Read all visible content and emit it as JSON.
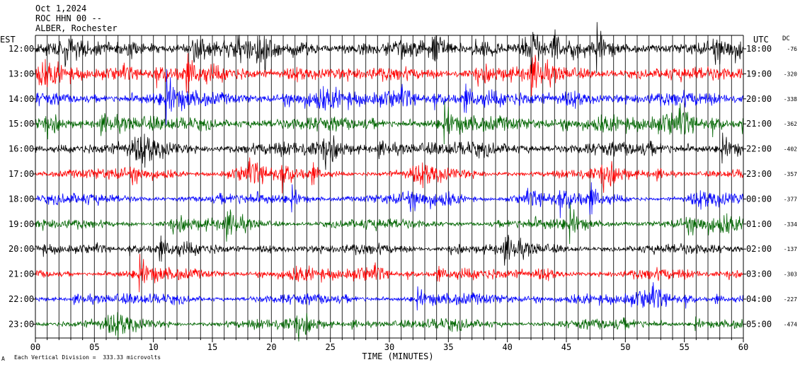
{
  "header": {
    "date": "Oct 1,2024",
    "station": "ROC HHN 00 --",
    "location": "ALBER, Rochester"
  },
  "chart_data": {
    "type": "line",
    "title": "",
    "xlabel": "TIME (MINUTES)",
    "left_axis_label": "EST",
    "right_axis_label": "UTC",
    "dc_label": "DC",
    "xlim": [
      0,
      60
    ],
    "x_ticks": [
      "00",
      "05",
      "10",
      "15",
      "20",
      "25",
      "30",
      "35",
      "40",
      "45",
      "50",
      "55",
      "60"
    ],
    "trace_colors": [
      "#000000",
      "#ff0000",
      "#0000ff",
      "#006600"
    ],
    "grid_vertical_each_minute": true,
    "rows": [
      {
        "est": "12:00",
        "utc": "18:00",
        "dc": "-76"
      },
      {
        "est": "13:00",
        "utc": "19:00",
        "dc": "-320"
      },
      {
        "est": "14:00",
        "utc": "20:00",
        "dc": "-338"
      },
      {
        "est": "15:00",
        "utc": "21:00",
        "dc": "-362"
      },
      {
        "est": "16:00",
        "utc": "22:00",
        "dc": "-402"
      },
      {
        "est": "17:00",
        "utc": "23:00",
        "dc": "-357"
      },
      {
        "est": "18:00",
        "utc": "00:00",
        "dc": "-377"
      },
      {
        "est": "19:00",
        "utc": "01:00",
        "dc": "-334"
      },
      {
        "est": "20:00",
        "utc": "02:00",
        "dc": "-137"
      },
      {
        "est": "21:00",
        "utc": "03:00",
        "dc": "-303"
      },
      {
        "est": "22:00",
        "utc": "04:00",
        "dc": "-227"
      },
      {
        "est": "23:00",
        "utc": "05:00",
        "dc": "-474"
      }
    ],
    "footer": {
      "mark": "A",
      "scale_text": "Each Vertical Division =  333.33 microvolts"
    }
  }
}
